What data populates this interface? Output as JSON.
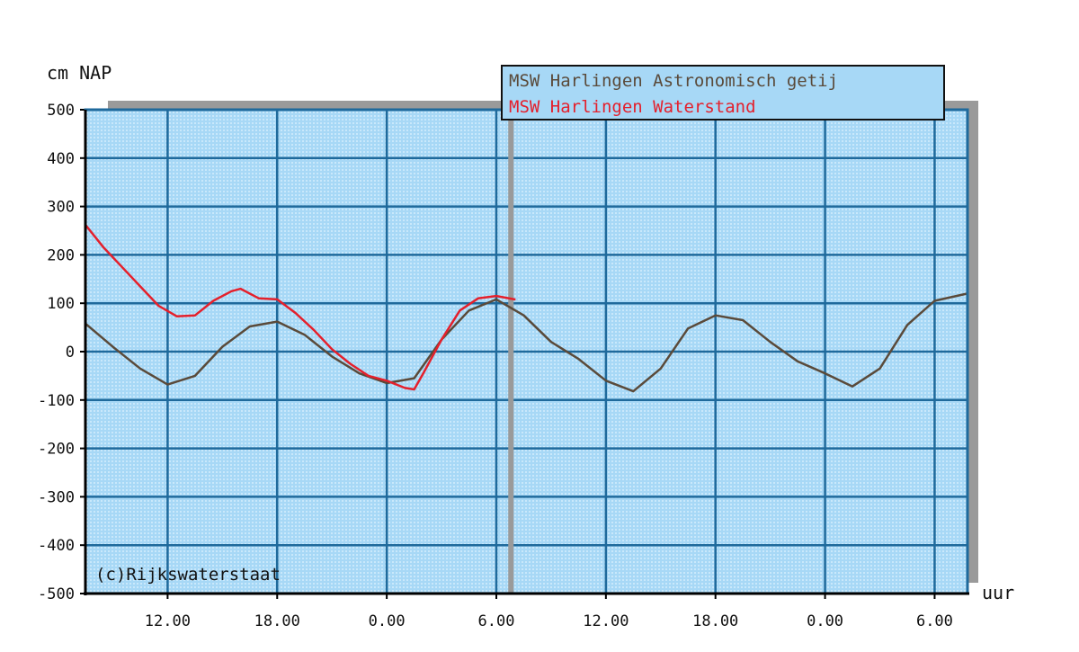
{
  "chart_data": {
    "type": "line",
    "ylabel": "cm NAP",
    "xlabel": "uur",
    "ylim": [
      -500,
      500
    ],
    "y_ticks": [
      500,
      400,
      300,
      200,
      100,
      0,
      -100,
      -200,
      -300,
      -400,
      -500
    ],
    "y_tick_labels": [
      "500",
      "400",
      "300",
      "200",
      "100",
      "0",
      "-100",
      "-200",
      "-300",
      "-400",
      "-500"
    ],
    "xlim_hours": [
      7.5,
      55.8
    ],
    "x_ticks_hours": [
      12,
      18,
      24,
      30,
      36,
      42,
      48,
      54
    ],
    "x_tick_labels": [
      "12.00",
      "18.00",
      "0.00",
      "6.00",
      "12.00",
      "18.00",
      "0.00",
      "6.00"
    ],
    "current_time_hours": 30.8,
    "grid": true,
    "legend_position": "top-right",
    "annotation": "(c)Rijkswaterstaat",
    "series": [
      {
        "name": "MSW Harlingen Astronomisch getij",
        "color": "#5a4a3a",
        "x": [
          7.5,
          9,
          10.5,
          12,
          13.5,
          15,
          16.5,
          18,
          19.5,
          21,
          22.5,
          24,
          25.5,
          27,
          28.5,
          30,
          31.5,
          33,
          34.5,
          36,
          37.5,
          39,
          40.5,
          42,
          43.5,
          45,
          46.5,
          48,
          49.5,
          51,
          52.5,
          54,
          55.8
        ],
        "y": [
          58,
          10,
          -35,
          -68,
          -50,
          10,
          52,
          62,
          35,
          -10,
          -45,
          -65,
          -55,
          25,
          85,
          108,
          75,
          20,
          -15,
          -60,
          -82,
          -35,
          48,
          75,
          65,
          20,
          -20,
          -45,
          -72,
          -35,
          55,
          105,
          120
        ]
      },
      {
        "name": "MSW Harlingen Waterstand",
        "color": "#e4202c",
        "x": [
          7.5,
          8.5,
          9.5,
          10.5,
          11.5,
          12.5,
          13.5,
          14.5,
          15.5,
          16,
          17,
          18,
          19,
          20,
          21,
          22,
          23,
          24,
          25,
          25.5,
          26,
          27,
          28,
          29,
          30,
          31
        ],
        "y": [
          262,
          215,
          175,
          135,
          95,
          73,
          75,
          105,
          125,
          130,
          110,
          108,
          80,
          45,
          5,
          -25,
          -50,
          -60,
          -75,
          -78,
          -45,
          25,
          85,
          110,
          115,
          108
        ]
      }
    ]
  }
}
